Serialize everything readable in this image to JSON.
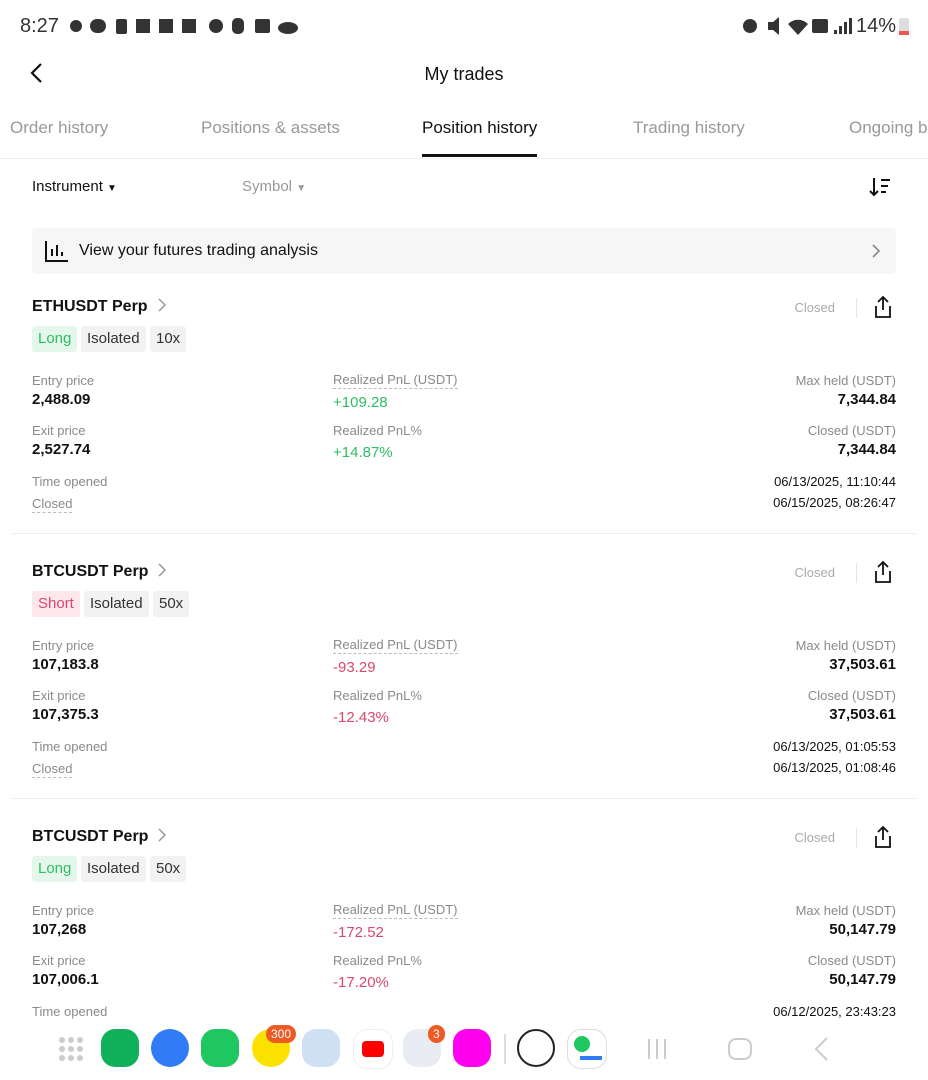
{
  "status_bar": {
    "time": "8:27",
    "battery": "14%"
  },
  "header": {
    "title": "My trades"
  },
  "tabs": {
    "items": [
      "Order history",
      "Positions & assets",
      "Position history",
      "Trading history",
      "Ongoing b"
    ],
    "active": 2
  },
  "filters": {
    "instrument": "Instrument",
    "symbol": "Symbol"
  },
  "banner": {
    "text": "View your futures trading analysis"
  },
  "labels": {
    "entry_price": "Entry price",
    "exit_price": "Exit price",
    "realized_pnl": "Realized PnL (USDT)",
    "realized_pnl_pct": "Realized PnL%",
    "max_held": "Max held (USDT)",
    "closed_value": "Closed (USDT)",
    "time_opened": "Time opened",
    "time_closed": "Closed",
    "status": "Closed"
  },
  "positions": [
    {
      "symbol": "ETHUSDT Perp",
      "side": "Long",
      "margin": "Isolated",
      "leverage": "10x",
      "entry_price": "2,488.09",
      "exit_price": "2,527.74",
      "realized_pnl": "+109.28",
      "realized_pnl_pct": "+14.87%",
      "max_held": "7,344.84",
      "closed_value": "7,344.84",
      "time_opened": "06/13/2025, 11:10:44",
      "time_closed": "06/15/2025, 08:26:47"
    },
    {
      "symbol": "BTCUSDT Perp",
      "side": "Short",
      "margin": "Isolated",
      "leverage": "50x",
      "entry_price": "107,183.8",
      "exit_price": "107,375.3",
      "realized_pnl": "-93.29",
      "realized_pnl_pct": "-12.43%",
      "max_held": "37,503.61",
      "closed_value": "37,503.61",
      "time_opened": "06/13/2025, 01:05:53",
      "time_closed": "06/13/2025, 01:08:46"
    },
    {
      "symbol": "BTCUSDT Perp",
      "side": "Long",
      "margin": "Isolated",
      "leverage": "50x",
      "entry_price": "107,268",
      "exit_price": "107,006.1",
      "realized_pnl": "-172.52",
      "realized_pnl_pct": "-17.20%",
      "max_held": "50,147.79",
      "closed_value": "50,147.79",
      "time_opened": "06/12/2025, 23:43:23"
    }
  ],
  "dock": {
    "badges": [
      "300",
      "3"
    ]
  }
}
